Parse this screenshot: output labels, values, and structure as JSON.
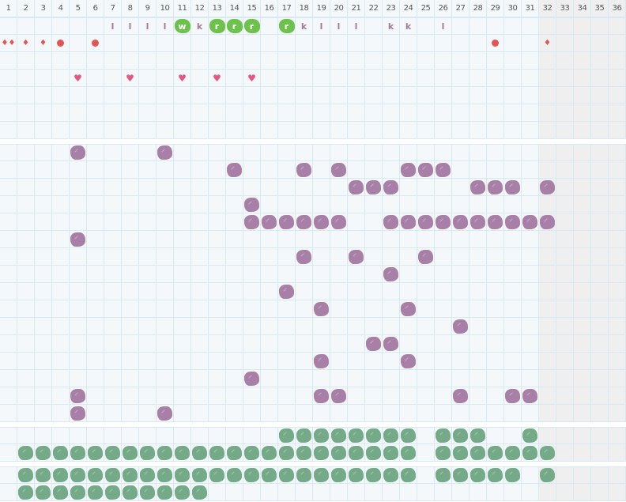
{
  "columns": [
    "1",
    "2",
    "3",
    "4",
    "5",
    "6",
    "7",
    "8",
    "9",
    "10",
    "11",
    "12",
    "13",
    "14",
    "15",
    "16",
    "17",
    "18",
    "19",
    "20",
    "21",
    "22",
    "23",
    "24",
    "25",
    "26",
    "27",
    "28",
    "29",
    "30",
    "31",
    "32",
    "33",
    "34",
    "35",
    "36"
  ],
  "inactive_from_column": 32,
  "colors": {
    "purple_mark": "#a880a7",
    "green_mark": "#74aa87",
    "letter_highlight": "#6cc24a",
    "letter": "#a57a99",
    "red": "#e25555",
    "heart": "#e65683",
    "inactive": "#efefef",
    "grid": "#d7eaf4"
  },
  "section1": {
    "letters": [
      {
        "col": 7,
        "text": "l"
      },
      {
        "col": 8,
        "text": "l"
      },
      {
        "col": 9,
        "text": "l"
      },
      {
        "col": 10,
        "text": "l"
      },
      {
        "col": 11,
        "text": "w",
        "highlight": true
      },
      {
        "col": 12,
        "text": "k"
      },
      {
        "col": 13,
        "text": "r",
        "highlight": true
      },
      {
        "col": 14,
        "text": "r",
        "highlight": true
      },
      {
        "col": 15,
        "text": "r",
        "highlight": true
      },
      {
        "col": 17,
        "text": "r",
        "highlight": true
      },
      {
        "col": 18,
        "text": "k"
      },
      {
        "col": 19,
        "text": "l"
      },
      {
        "col": 20,
        "text": "l"
      },
      {
        "col": 21,
        "text": "l"
      },
      {
        "col": 23,
        "text": "k"
      },
      {
        "col": 24,
        "text": "k"
      },
      {
        "col": 26,
        "text": "l"
      }
    ],
    "symbols": [
      {
        "col": 1,
        "icon": "double-drop"
      },
      {
        "col": 2,
        "icon": "drop"
      },
      {
        "col": 3,
        "icon": "drop"
      },
      {
        "col": 4,
        "icon": "dot"
      },
      {
        "col": 6,
        "icon": "dot"
      },
      {
        "col": 29,
        "icon": "dot"
      },
      {
        "col": 32,
        "icon": "drop"
      }
    ],
    "hearts": [
      5,
      8,
      11,
      13,
      15
    ],
    "row_count": 7
  },
  "section2": {
    "mark": "purple",
    "rows": [
      [
        5,
        10
      ],
      [
        14,
        18,
        20,
        24,
        25,
        26
      ],
      [
        21,
        22,
        23,
        28,
        29,
        30,
        32
      ],
      [
        15
      ],
      [
        15,
        16,
        17,
        18,
        19,
        20,
        23,
        24,
        25,
        26,
        27,
        28,
        29,
        30,
        31,
        32
      ],
      [
        5
      ],
      [
        18,
        21,
        25
      ],
      [
        23
      ],
      [
        17
      ],
      [
        19,
        24
      ],
      [
        27
      ],
      [
        22,
        23
      ],
      [
        19,
        24
      ],
      [
        15
      ],
      [
        5,
        19,
        20,
        27,
        30,
        31
      ],
      [
        5,
        10
      ]
    ]
  },
  "section3": {
    "mark": "green",
    "rows": [
      [
        17,
        18,
        19,
        20,
        21,
        22,
        23,
        24,
        26,
        27,
        28,
        31
      ],
      [
        2,
        3,
        4,
        5,
        6,
        7,
        8,
        9,
        10,
        11,
        12,
        13,
        14,
        15,
        16,
        17,
        18,
        19,
        20,
        21,
        22,
        23,
        24,
        26,
        27,
        28,
        29,
        30,
        31,
        32
      ]
    ]
  },
  "section4": {
    "mark": "green",
    "rows": [
      [
        2,
        3,
        4,
        5,
        6,
        7,
        8,
        9,
        10,
        11,
        12,
        13,
        14,
        15,
        16,
        17,
        18,
        19,
        20,
        21,
        22,
        23,
        24,
        26,
        27,
        28,
        29,
        30,
        32
      ],
      [
        2,
        3,
        4,
        5,
        6,
        7,
        8,
        9,
        10,
        11,
        12
      ]
    ]
  }
}
